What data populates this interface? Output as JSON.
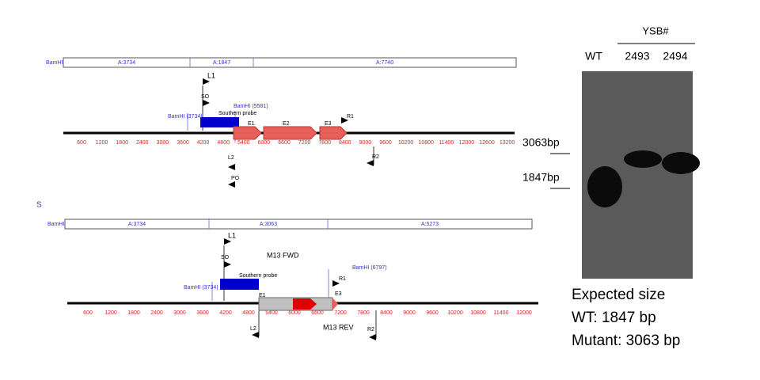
{
  "stray_mark": "S",
  "map1": {
    "segment_label": "BamHI",
    "segments": [
      "A:3734",
      "A:1847",
      "A:7740"
    ],
    "features": [
      "L1",
      "SO",
      "BamHI (5581)",
      "BamHI (3734)",
      "Southern probe",
      "E1",
      "E2",
      "E3",
      "R1",
      "L2",
      "R2",
      "PO"
    ],
    "axis_ticks": [
      600,
      1200,
      1800,
      2400,
      3000,
      3600,
      4200,
      4800,
      5400,
      6000,
      6600,
      7200,
      7800,
      8400,
      9000,
      9600,
      10200,
      10800,
      11400,
      12000,
      12600,
      13200
    ]
  },
  "map2": {
    "segment_label": "BamHI",
    "segments": [
      "A:3734",
      "A:3063",
      "A:5273"
    ],
    "features": [
      "L1",
      "SO",
      "M13 FWD",
      "BamHI (6797)",
      "R1",
      "BamHI (3734)",
      "Southern probe",
      "E1",
      "E3",
      "L2",
      "M13 REV",
      "R2"
    ],
    "axis_ticks": [
      600,
      1200,
      1800,
      2400,
      3000,
      3600,
      4200,
      4800,
      5400,
      6000,
      6600,
      7200,
      7800,
      8400,
      9000,
      9600,
      10200,
      10800,
      11400,
      12000
    ]
  },
  "blot": {
    "group_label": "YSB#",
    "lanes": [
      "WT",
      "2493",
      "2494"
    ],
    "size_markers": [
      "3063bp",
      "1847bp"
    ],
    "caption": [
      "Expected size",
      "WT: 1847 bp",
      "Mutant: 3063 bp"
    ]
  }
}
